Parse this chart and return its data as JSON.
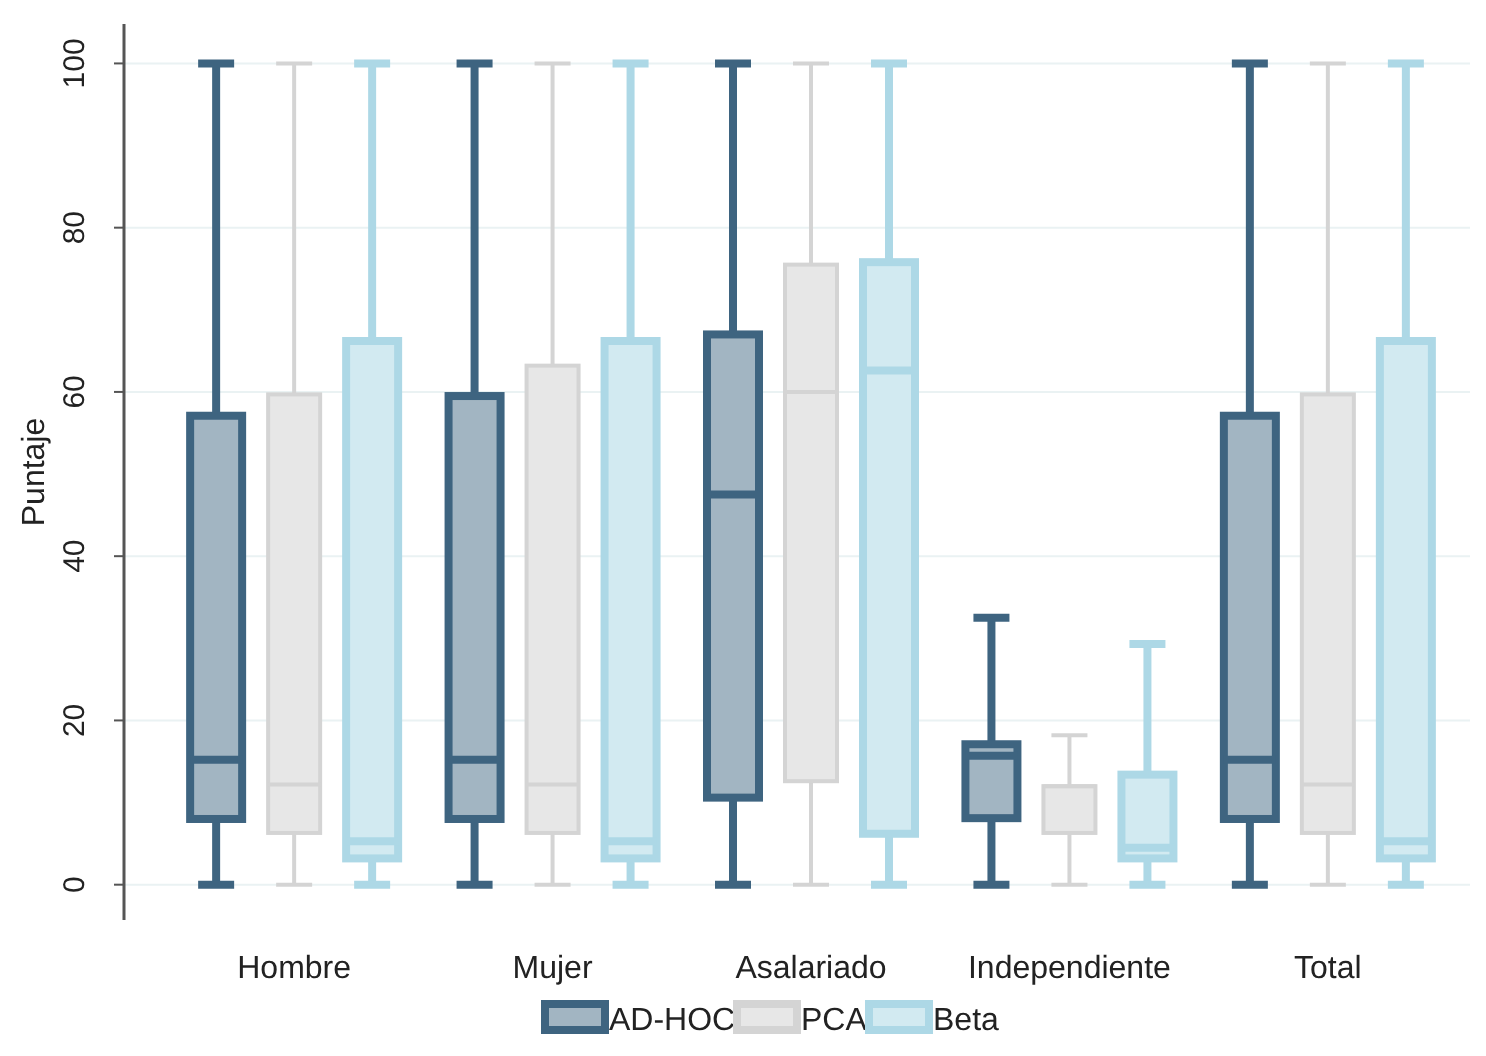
{
  "chart_data": {
    "type": "box",
    "ylabel": "Puntaje",
    "categories": [
      "Hombre",
      "Mujer",
      "Asalariado",
      "Independiente",
      "Total"
    ],
    "ylim": [
      -4.3,
      104.8
    ],
    "yticks": [
      0,
      20,
      40,
      60,
      80,
      100
    ],
    "grid": "y",
    "legend": "bottom",
    "series": [
      {
        "name": "AD-HOC",
        "color": "#3e6480",
        "boxes": [
          {
            "low": 0,
            "q1": 8,
            "median": 15.2,
            "q3": 57.1,
            "high": 100
          },
          {
            "low": 0,
            "q1": 8,
            "median": 15.2,
            "q3": 59.5,
            "high": 100
          },
          {
            "low": 0,
            "q1": 10.6,
            "median": 47.5,
            "q3": 67,
            "high": 100
          },
          {
            "low": 0,
            "q1": 8.1,
            "median": 15.7,
            "q3": 17.1,
            "high": 32.5
          },
          {
            "low": 0,
            "q1": 8,
            "median": 15.2,
            "q3": 57.1,
            "high": 100
          }
        ]
      },
      {
        "name": "PCA",
        "color": "#d4d4d4",
        "boxes": [
          {
            "low": 0,
            "q1": 6.3,
            "median": 12.2,
            "q3": 59.7,
            "high": 100
          },
          {
            "low": 0,
            "q1": 6.3,
            "median": 12.2,
            "q3": 63.2,
            "high": 100
          },
          {
            "low": 0,
            "q1": 12.6,
            "median": 60,
            "q3": 75.5,
            "high": 100
          },
          {
            "low": 0,
            "q1": 6.3,
            "median": 12,
            "q3": 12,
            "high": 18.2
          },
          {
            "low": 0,
            "q1": 6.3,
            "median": 12.2,
            "q3": 59.7,
            "high": 100
          }
        ]
      },
      {
        "name": "Beta",
        "color": "#add8e6",
        "boxes": [
          {
            "low": 0,
            "q1": 3.2,
            "median": 5.3,
            "q3": 66.2,
            "high": 100
          },
          {
            "low": 0,
            "q1": 3.2,
            "median": 5.3,
            "q3": 66.2,
            "high": 100
          },
          {
            "low": 0,
            "q1": 6.2,
            "median": 62.6,
            "q3": 75.8,
            "high": 100
          },
          {
            "low": 0,
            "q1": 3.2,
            "median": 4.5,
            "q3": 13.4,
            "high": 29.3
          },
          {
            "low": 0,
            "q1": 3.2,
            "median": 5.3,
            "q3": 66.2,
            "high": 100
          }
        ]
      }
    ]
  }
}
